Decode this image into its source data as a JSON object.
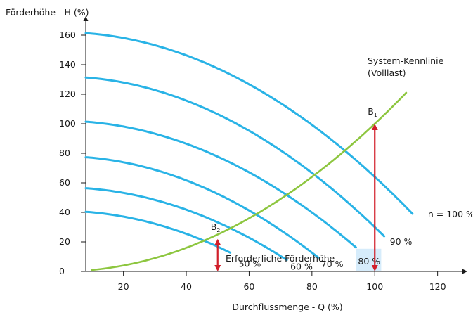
{
  "chart_data": {
    "type": "line",
    "xlabel": "Durchflussmenge - Q (%)",
    "ylabel": "Förderhöhe - H (%)",
    "xlim": [
      8,
      130
    ],
    "ylim": [
      0,
      170
    ],
    "x_ticks": [
      20,
      40,
      60,
      80,
      100,
      120
    ],
    "y_ticks": [
      0,
      20,
      40,
      60,
      80,
      100,
      120,
      140,
      160
    ],
    "grid": false,
    "pump_curves": [
      {
        "name": "n = 100 %",
        "label": "n = 100 %",
        "shutoff_head": 162,
        "max_flow": 112,
        "k": 0.0098
      },
      {
        "name": "90 %",
        "label": "90 %",
        "shutoff_head": 132,
        "max_flow": 103,
        "k": 0.0102
      },
      {
        "name": "80 %",
        "label": "80 %",
        "shutoff_head": 102,
        "max_flow": 94,
        "k": 0.0097
      },
      {
        "name": "70 %",
        "label": "70 %",
        "shutoff_head": 78,
        "max_flow": 82,
        "k": 0.0102
      },
      {
        "name": "60 %",
        "label": "60 %",
        "shutoff_head": 57,
        "max_flow": 72,
        "k": 0.0095
      },
      {
        "name": "50 %",
        "label": "50 %",
        "shutoff_head": 41,
        "max_flow": 54,
        "k": 0.0097
      }
    ],
    "system_curve": {
      "name": "System-Kennlinie (Volllast)",
      "label_line1": "System-Kennlinie",
      "label_line2": "(Volllast)",
      "coefficient": 0.01,
      "x_start": 10,
      "x_end": 110
    },
    "operating_points": [
      {
        "label": "B",
        "subscript": "2",
        "x": 50,
        "y": 22
      },
      {
        "label": "B",
        "subscript": "1",
        "x": 100,
        "y": 100
      }
    ],
    "annotations": [
      {
        "text": "Erforderliche Förderhöhe"
      }
    ],
    "colors": {
      "pump_curves": "#29b3e6",
      "system_curve": "#8dc63f",
      "arrows": "#d11f2a",
      "highlight": "#d6ecfb"
    }
  }
}
